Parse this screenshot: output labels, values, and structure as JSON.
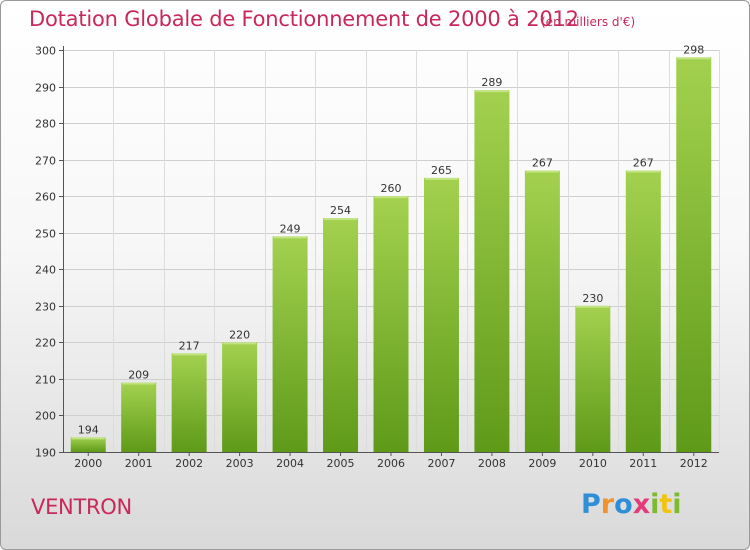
{
  "title": "Dotation Globale de Fonctionnement de 2000 à 2012",
  "unit": "(en milliers d'€)",
  "commune": "VENTRON",
  "logo": "Proxiti",
  "colors": {
    "bar_light": "#a3d14f",
    "bar_dark": "#5e9a18",
    "text_accent": "#c8285a"
  },
  "chart_data": {
    "type": "bar",
    "title": "Dotation Globale de Fonctionnement de 2000 à 2012",
    "subtitle": "(en milliers d'€)",
    "xlabel": "",
    "ylabel": "",
    "ylim": [
      190,
      300
    ],
    "yticks": [
      190,
      200,
      210,
      220,
      230,
      240,
      250,
      260,
      270,
      280,
      290,
      300
    ],
    "grid": true,
    "categories": [
      "2000",
      "2001",
      "2002",
      "2003",
      "2004",
      "2005",
      "2006",
      "2007",
      "2008",
      "2009",
      "2010",
      "2011",
      "2012"
    ],
    "values": [
      194,
      209,
      217,
      220,
      249,
      254,
      260,
      265,
      289,
      267,
      230,
      267,
      298
    ]
  }
}
